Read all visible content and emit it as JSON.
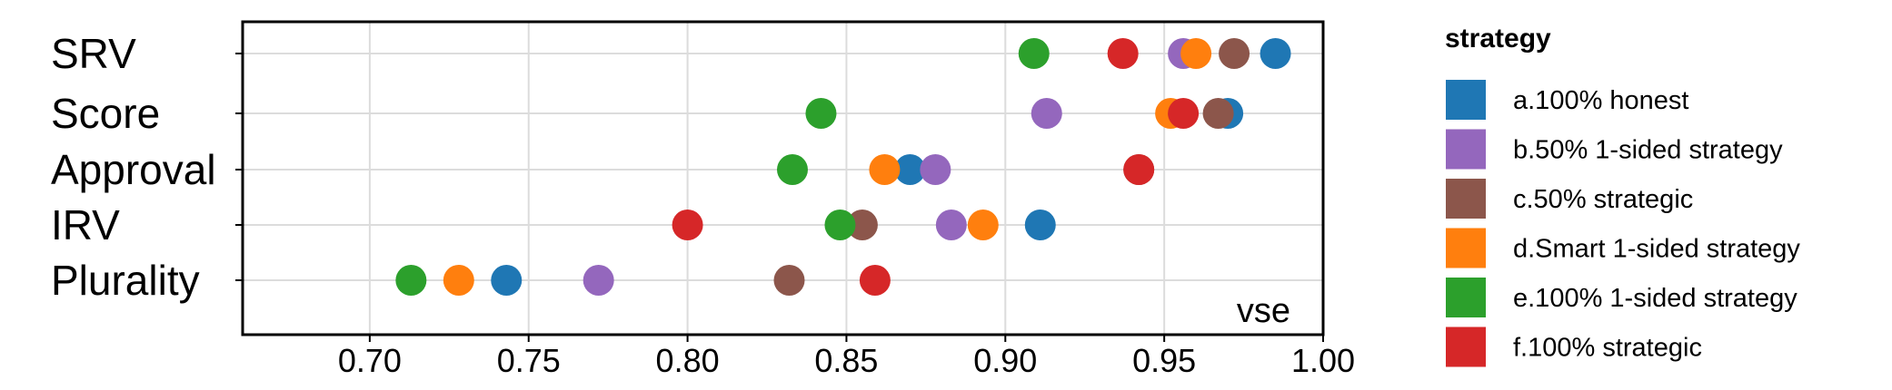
{
  "chart_data": {
    "type": "scatter",
    "categories": [
      "SRV",
      "Score",
      "Approval",
      "IRV",
      "Plurality"
    ],
    "xlabel": "vse",
    "xlim": [
      0.66,
      1.0
    ],
    "xticks": [
      "0.70",
      "0.75",
      "0.80",
      "0.85",
      "0.90",
      "0.95",
      "1.00"
    ],
    "xtick_values": [
      0.7,
      0.75,
      0.8,
      0.85,
      0.9,
      0.95,
      1.0
    ],
    "grid": true,
    "legend_title": "strategy",
    "legend_position": "right",
    "series": [
      {
        "name": "a.100% honest",
        "color": "#1f77b4",
        "values": [
          0.985,
          0.97,
          0.87,
          0.911,
          0.743
        ]
      },
      {
        "name": "b.50% 1-sided strategy",
        "color": "#9467bd",
        "values": [
          0.956,
          0.913,
          0.878,
          0.883,
          0.772
        ]
      },
      {
        "name": "c.50% strategic",
        "color": "#8c564b",
        "values": [
          0.972,
          0.967,
          0.942,
          0.855,
          0.832
        ]
      },
      {
        "name": "d.Smart 1-sided strategy",
        "color": "#ff7f0e",
        "values": [
          0.96,
          0.952,
          0.862,
          0.893,
          0.728
        ]
      },
      {
        "name": "e.100% 1-sided strategy",
        "color": "#2ca02c",
        "values": [
          0.909,
          0.842,
          0.833,
          0.848,
          0.713
        ]
      },
      {
        "name": "f.100% strategic",
        "color": "#d62728",
        "values": [
          0.937,
          0.956,
          0.942,
          0.8,
          0.859
        ]
      }
    ]
  }
}
